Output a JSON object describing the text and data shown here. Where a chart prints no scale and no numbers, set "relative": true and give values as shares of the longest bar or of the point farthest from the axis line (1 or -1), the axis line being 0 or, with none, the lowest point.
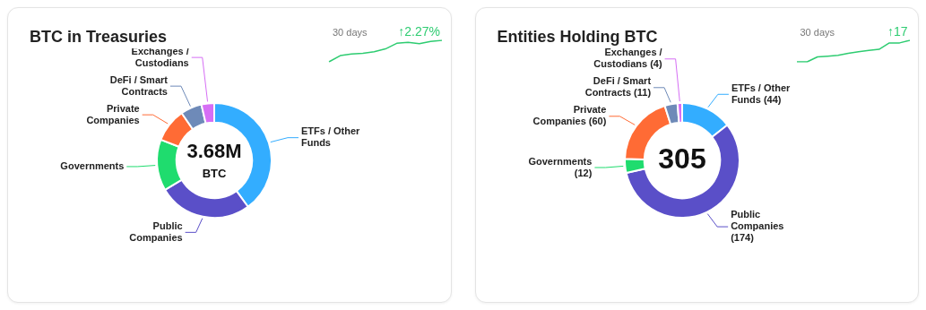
{
  "chart_data": [
    {
      "type": "donut",
      "title": "BTC in Treasuries",
      "categories": [
        "ETFs / Other Funds",
        "Public Companies",
        "Governments",
        "Private Companies",
        "DeFi / Smart Contracts",
        "Exchanges / Custodians"
      ],
      "values": [
        40,
        26.4,
        14.5,
        9.5,
        6,
        3.6
      ],
      "colors": [
        "#33adff",
        "#5a4fc8",
        "#1fdc6e",
        "#ff6b35",
        "#6e8ab8",
        "#d66ef5"
      ],
      "annotations": [
        "3.68M",
        "BTC"
      ]
    },
    {
      "type": "line",
      "relative": true,
      "categories": [
        null,
        null,
        null,
        null,
        null,
        null,
        null,
        null,
        null,
        null,
        null
      ],
      "values": [
        0,
        0.29,
        0.36,
        0.4,
        0.47,
        0.6,
        0.86,
        0.91,
        0.84,
        0.95,
        1
      ],
      "color": "#2ecc71",
      "annotations": [
        "30 days",
        "↑2.27%"
      ]
    },
    {
      "type": "donut",
      "title": "Entities Holding BTC",
      "categories": [
        "ETFs / Other Funds (44)",
        "Public Companies (174)",
        "Governments (12)",
        "Private Companies (60)",
        "DeFi / Smart Contracts (11)",
        "Exchanges / Custodians (4)"
      ],
      "values": [
        44,
        174,
        12,
        60,
        11,
        4
      ],
      "colors": [
        "#33adff",
        "#5a4fc8",
        "#1fdc6e",
        "#ff6b35",
        "#6e8ab8",
        "#d66ef5"
      ],
      "annotations": [
        "305"
      ]
    },
    {
      "type": "line",
      "relative": true,
      "categories": [
        null,
        null,
        null,
        null,
        null,
        null,
        null,
        null,
        null,
        null,
        null,
        null
      ],
      "values": [
        0,
        0,
        0.23,
        0.26,
        0.3,
        0.4,
        0.47,
        0.53,
        0.58,
        0.88,
        0.88,
        1
      ],
      "color": "#2ecc71",
      "annotations": [
        "30 days",
        "↑17"
      ]
    }
  ]
}
